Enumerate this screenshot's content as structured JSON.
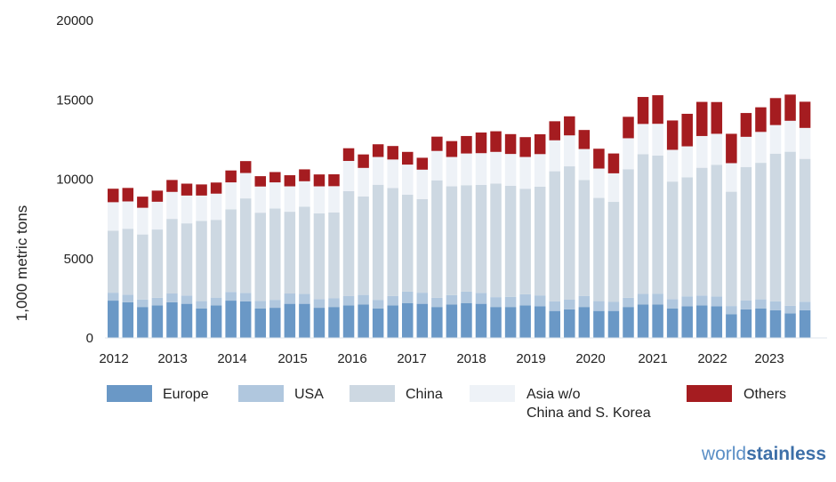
{
  "chart_data": {
    "type": "bar",
    "stacked": true,
    "title": "",
    "xlabel": "",
    "ylabel": "1,000 metric tons",
    "ylim": [
      0,
      20000
    ],
    "yticks": [
      "0",
      "5000",
      "10000",
      "15000",
      "20000"
    ],
    "year_labels": [
      "2012",
      "2013",
      "2014",
      "2015",
      "2016",
      "2017",
      "2018",
      "2019",
      "2020",
      "2021",
      "2022",
      "2023"
    ],
    "quarters_per_year": 4,
    "grid": false,
    "legend_position": "bottom",
    "series": [
      {
        "name": "Europe",
        "color": "#6a98c6",
        "values": [
          2350,
          2250,
          1950,
          2050,
          2250,
          2150,
          1850,
          2050,
          2350,
          2300,
          1850,
          1900,
          2150,
          2150,
          1900,
          1950,
          2050,
          2100,
          1850,
          2050,
          2200,
          2150,
          1950,
          2100,
          2200,
          2150,
          1950,
          1950,
          2050,
          2000,
          1700,
          1800,
          1950,
          1700,
          1700,
          1950,
          2100,
          2100,
          1850,
          2000,
          2050,
          2000,
          1500,
          1800,
          1850,
          1750,
          1550,
          1750
        ]
      },
      {
        "name": "USA",
        "color": "#b0c7de",
        "values": [
          500,
          480,
          470,
          480,
          550,
          520,
          470,
          490,
          550,
          540,
          490,
          500,
          650,
          620,
          550,
          560,
          600,
          610,
          550,
          590,
          720,
          700,
          580,
          600,
          720,
          690,
          620,
          640,
          700,
          680,
          600,
          610,
          700,
          620,
          570,
          580,
          680,
          690,
          600,
          620,
          620,
          610,
          510,
          570,
          580,
          560,
          480,
          530
        ]
      },
      {
        "name": "China",
        "color": "#cdd8e2",
        "values": [
          3900,
          4150,
          4100,
          4300,
          4700,
          4550,
          5050,
          4900,
          5200,
          5950,
          5550,
          5750,
          5150,
          5500,
          5400,
          5400,
          6600,
          6200,
          7250,
          6800,
          6100,
          5900,
          7400,
          6850,
          6700,
          6800,
          7150,
          7000,
          6650,
          6850,
          8200,
          8400,
          7300,
          6500,
          6300,
          8100,
          8800,
          8700,
          7400,
          7500,
          8050,
          8300,
          7200,
          8400,
          8600,
          9300,
          9700,
          9000
        ]
      },
      {
        "name": "Asia w/o China and S. Korea",
        "color": "#eef2f7",
        "values": [
          1800,
          1720,
          1680,
          1750,
          1700,
          1750,
          1600,
          1650,
          1700,
          1600,
          1650,
          1650,
          1600,
          1600,
          1700,
          1650,
          1900,
          1800,
          1750,
          1800,
          1900,
          1850,
          1850,
          1850,
          2000,
          2000,
          2000,
          2000,
          2000,
          2050,
          1950,
          1950,
          1950,
          1850,
          1800,
          1950,
          1900,
          2000,
          2000,
          1950,
          2000,
          1950,
          1800,
          1900,
          1950,
          1800,
          1950,
          1950
        ]
      },
      {
        "name": "Others",
        "color": "#a51c20",
        "values": [
          850,
          850,
          700,
          700,
          750,
          750,
          700,
          700,
          750,
          750,
          650,
          650,
          700,
          750,
          750,
          750,
          800,
          850,
          800,
          850,
          800,
          750,
          900,
          1000,
          1100,
          1300,
          1300,
          1250,
          1250,
          1250,
          1200,
          1200,
          1200,
          1250,
          1250,
          1350,
          1700,
          1800,
          1850,
          2050,
          2150,
          2000,
          1850,
          1500,
          1550,
          1700,
          1650,
          1650
        ]
      }
    ]
  },
  "brand": {
    "part1": "world",
    "part2": "stainless"
  }
}
